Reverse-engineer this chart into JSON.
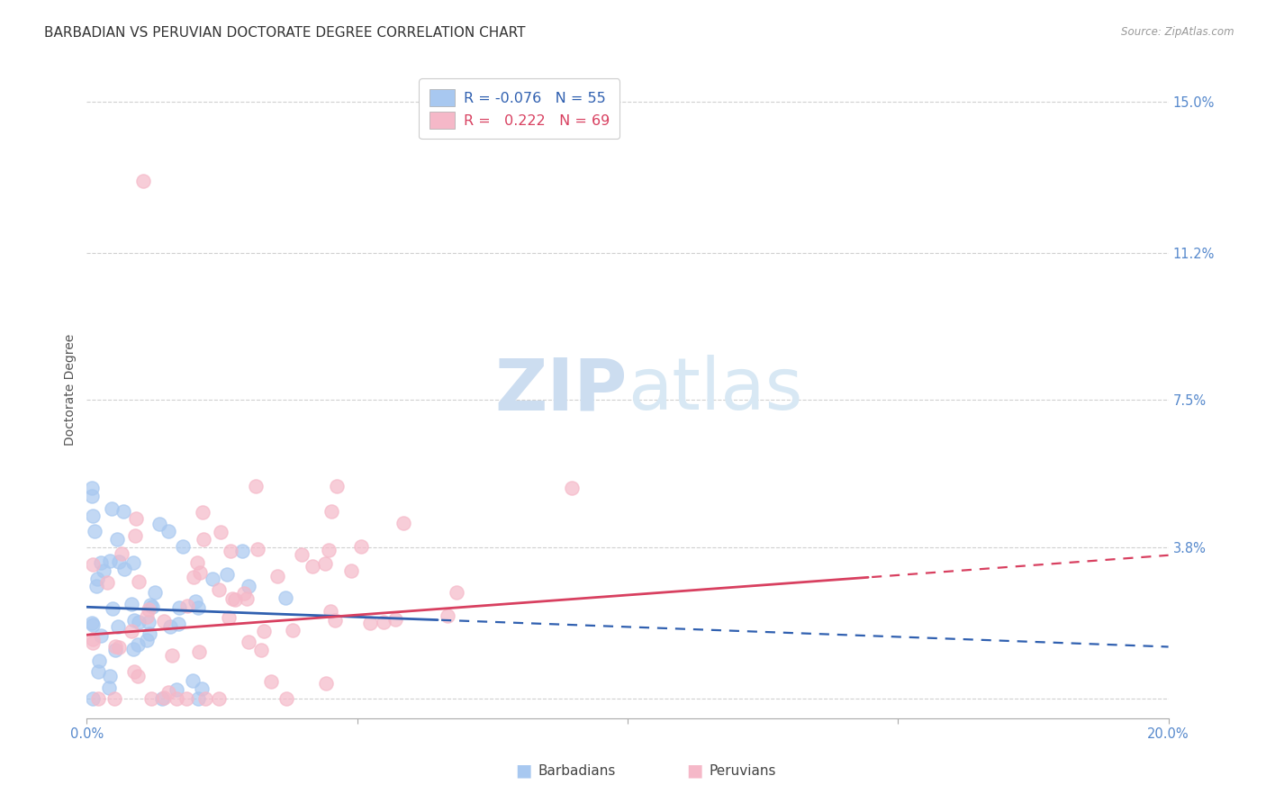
{
  "title": "BARBADIAN VS PERUVIAN DOCTORATE DEGREE CORRELATION CHART",
  "source": "Source: ZipAtlas.com",
  "ylabel": "Doctorate Degree",
  "xlim": [
    0.0,
    0.2
  ],
  "ylim": [
    -0.005,
    0.16
  ],
  "yticks": [
    0.0,
    0.038,
    0.075,
    0.112,
    0.15
  ],
  "ytick_labels": [
    "",
    "3.8%",
    "7.5%",
    "11.2%",
    "15.0%"
  ],
  "xticks": [
    0.0,
    0.05,
    0.1,
    0.15,
    0.2
  ],
  "xtick_labels": [
    "0.0%",
    "",
    "",
    "",
    "20.0%"
  ],
  "grid_color": "#d0d0d0",
  "background_color": "#ffffff",
  "barbadian_color": "#a8c8f0",
  "peruvian_color": "#f5b8c8",
  "barbadian_line_color": "#3060b0",
  "peruvian_line_color": "#d84060",
  "barbadian_R": -0.076,
  "barbadian_N": 55,
  "peruvian_R": 0.222,
  "peruvian_N": 69,
  "legend_label_1": "Barbadians",
  "legend_label_2": "Peruvians",
  "watermark_zip": "ZIP",
  "watermark_atlas": "atlas",
  "watermark_color_zip": "#c8ddf0",
  "watermark_color_atlas": "#c8ddf0",
  "title_fontsize": 11,
  "axis_label_fontsize": 10,
  "tick_fontsize": 10.5,
  "tick_color": "#5588cc",
  "legend_R_color_1": "#3060b0",
  "legend_R_color_2": "#d84060",
  "legend_N_color": "#3060b0"
}
